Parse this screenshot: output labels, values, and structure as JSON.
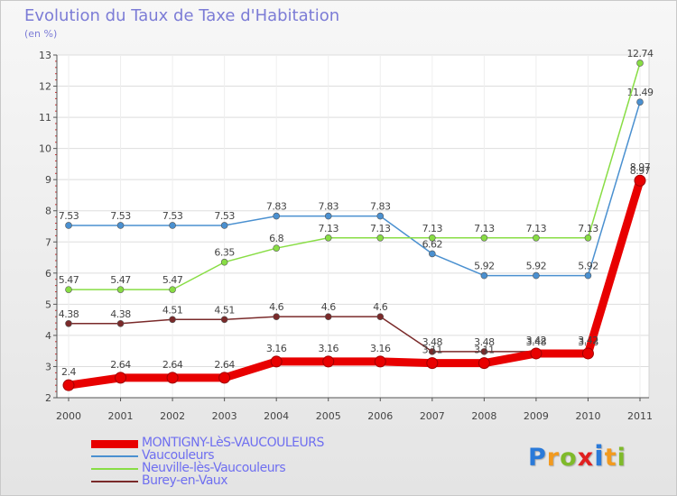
{
  "header": {
    "title": "Evolution du Taux de Taxe d'Habitation",
    "unit": "(en %)"
  },
  "logo": {
    "text": "Proxiti",
    "colors": [
      "#2a7ad9",
      "#f29a1f",
      "#7fba2a",
      "#e02020",
      "#2a7ad9",
      "#f29a1f",
      "#7fba2a"
    ]
  },
  "chart_data": {
    "type": "line",
    "x": [
      "2000",
      "2001",
      "2002",
      "2003",
      "2004",
      "2005",
      "2006",
      "2007",
      "2008",
      "2009",
      "2010",
      "2011"
    ],
    "ylim": [
      2,
      13
    ],
    "yticks": [
      "2",
      "3",
      "4",
      "5",
      "6",
      "7",
      "8",
      "9",
      "10",
      "11",
      "12",
      "13"
    ],
    "grid": true,
    "legend_position": "bottom-left",
    "series": [
      {
        "name": "MONTIGNY-LèS-VAUCOULEURS",
        "color": "#e80000",
        "values": [
          2.4,
          2.64,
          2.64,
          2.64,
          3.16,
          3.16,
          3.16,
          3.11,
          3.11,
          3.42,
          3.42,
          8.97
        ],
        "labels": [
          "2.4",
          "2.64",
          "2.64",
          "2.64",
          "3.16",
          "3.16",
          "3.16",
          "3.11",
          "3.11",
          "3.42",
          "3.42",
          "8.97"
        ]
      },
      {
        "name": "Vaucouleurs",
        "color": "#4a90d0",
        "values": [
          7.53,
          7.53,
          7.53,
          7.53,
          7.83,
          7.83,
          7.83,
          6.62,
          5.92,
          5.92,
          5.92,
          11.49
        ],
        "labels": [
          "7.53",
          "7.53",
          "7.53",
          "7.53",
          "7.83",
          "7.83",
          "7.83",
          "6.62",
          "5.92",
          "5.92",
          "5.92",
          "11.49"
        ]
      },
      {
        "name": "Neuville-lès-Vaucouleurs",
        "color": "#88dd44",
        "values": [
          5.47,
          5.47,
          5.47,
          6.35,
          6.8,
          7.13,
          7.13,
          7.13,
          7.13,
          7.13,
          7.13,
          12.74
        ],
        "labels": [
          "5.47",
          "5.47",
          "5.47",
          "6.35",
          "6.8",
          "7.13",
          "7.13",
          "7.13",
          "7.13",
          "7.13",
          "7.13",
          "12.74"
        ]
      },
      {
        "name": "Burey-en-Vaux",
        "color": "#7a2a2a",
        "values": [
          4.38,
          4.38,
          4.51,
          4.51,
          4.6,
          4.6,
          4.6,
          3.48,
          3.48,
          3.48,
          3.48,
          8.97
        ],
        "labels": [
          "4.38",
          "4.38",
          "4.51",
          "4.51",
          "4.6",
          "4.6",
          "4.6",
          "3.48",
          "3.48",
          "3.48",
          "3.48",
          "8.97"
        ]
      }
    ]
  }
}
